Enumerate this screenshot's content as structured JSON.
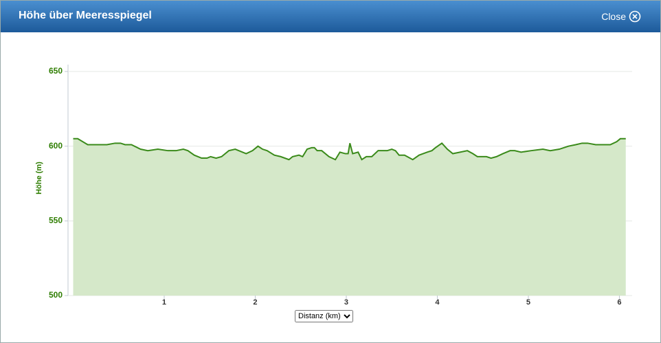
{
  "header": {
    "title": "Höhe über Meeresspiegel",
    "close": "Close"
  },
  "chart_data": {
    "type": "area",
    "y_label": "Höhe (m)",
    "x_label": "Distanz (km)",
    "x": [
      0,
      0.05,
      0.16,
      0.37,
      0.46,
      0.52,
      0.57,
      0.64,
      0.74,
      0.82,
      0.93,
      1.04,
      1.13,
      1.21,
      1.26,
      1.33,
      1.41,
      1.47,
      1.51,
      1.57,
      1.63,
      1.71,
      1.78,
      1.9,
      1.97,
      2.03,
      2.08,
      2.13,
      2.21,
      2.28,
      2.37,
      2.41,
      2.48,
      2.52,
      2.57,
      2.62,
      2.65,
      2.68,
      2.73,
      2.81,
      2.88,
      2.93,
      2.99,
      3.02,
      3.04,
      3.07,
      3.13,
      3.17,
      3.22,
      3.28,
      3.35,
      3.41,
      3.45,
      3.5,
      3.54,
      3.58,
      3.64,
      3.67,
      3.73,
      3.8,
      3.89,
      3.94,
      3.98,
      4.05,
      4.11,
      4.17,
      4.25,
      4.33,
      4.39,
      4.44,
      4.54,
      4.59,
      4.65,
      4.72,
      4.8,
      4.85,
      4.92,
      5.03,
      5.16,
      5.24,
      5.34,
      5.44,
      5.52,
      5.59,
      5.65,
      5.74,
      5.9,
      5.97,
      6.01,
      6.07
    ],
    "values": [
      605,
      605,
      601,
      601,
      602,
      602,
      601,
      601,
      598,
      597,
      598,
      597,
      597,
      598,
      597,
      594,
      592,
      592,
      593,
      592,
      593,
      597,
      598,
      595,
      597,
      600,
      598,
      597,
      594,
      593,
      591,
      593,
      594,
      593,
      598,
      599,
      599,
      597,
      597,
      593,
      591,
      596,
      595,
      595,
      602,
      595,
      596,
      591,
      593,
      593,
      597,
      597,
      597,
      598,
      597,
      594,
      594,
      593,
      591,
      594,
      596,
      597,
      599,
      602,
      598,
      595,
      596,
      597,
      595,
      593,
      593,
      592,
      593,
      595,
      597,
      597,
      596,
      597,
      598,
      597,
      598,
      600,
      601,
      602,
      602,
      601,
      601,
      603,
      605,
      605
    ],
    "color": "#3a8a1a",
    "fill": "#d5e8c9",
    "xlim": [
      0,
      6.14
    ],
    "xticks": [
      1,
      2,
      3,
      4,
      5,
      6
    ],
    "ylim": [
      500,
      650
    ],
    "yticks": [
      500,
      550,
      600,
      650
    ],
    "grid": true
  }
}
